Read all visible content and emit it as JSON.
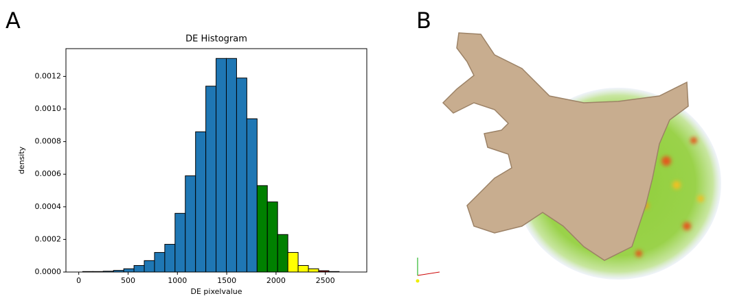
{
  "panel_labels": [
    "A",
    "B"
  ],
  "chart_data": {
    "type": "histogram",
    "title": "DE Histogram",
    "x_label": "DE pixelvalue",
    "y_label": "density",
    "bins": [
      40,
      144,
      248,
      352,
      456,
      560,
      664,
      768,
      872,
      976,
      1080,
      1184,
      1288,
      1392,
      1496,
      1600,
      1704,
      1808,
      1912,
      2016,
      2120,
      2224,
      2328,
      2432,
      2536,
      2640
    ],
    "values": [
      3e-06,
      3e-06,
      5e-06,
      1e-05,
      2e-05,
      4e-05,
      7e-05,
      0.00012,
      0.00017,
      0.00036,
      0.00059,
      0.00086,
      0.00114,
      0.00131,
      0.00131,
      0.00119,
      0.00094,
      0.00053,
      0.00043,
      0.00023,
      0.00012,
      4e-05,
      2e-05,
      8e-06,
      3e-06
    ],
    "colors": [
      "#1f77b4",
      "#1f77b4",
      "#1f77b4",
      "#1f77b4",
      "#1f77b4",
      "#1f77b4",
      "#1f77b4",
      "#1f77b4",
      "#1f77b4",
      "#1f77b4",
      "#1f77b4",
      "#1f77b4",
      "#1f77b4",
      "#1f77b4",
      "#1f77b4",
      "#1f77b4",
      "#1f77b4",
      "#008000",
      "#008000",
      "#008000",
      "#ffff00",
      "#ffff00",
      "#ffff00",
      "#8b0000",
      "#8b0000"
    ],
    "xlim": [
      -130,
      2920
    ],
    "xticks": [
      0,
      500,
      1000,
      1500,
      2000,
      2500
    ],
    "ylim": [
      0,
      0.00137
    ],
    "yticks": [
      {
        "value": 0,
        "label": "0.0000"
      },
      0.0002,
      0.0004,
      0.0006,
      0.0008,
      {
        "value": 0.001,
        "label": "0.0010"
      },
      0.0012
    ]
  }
}
